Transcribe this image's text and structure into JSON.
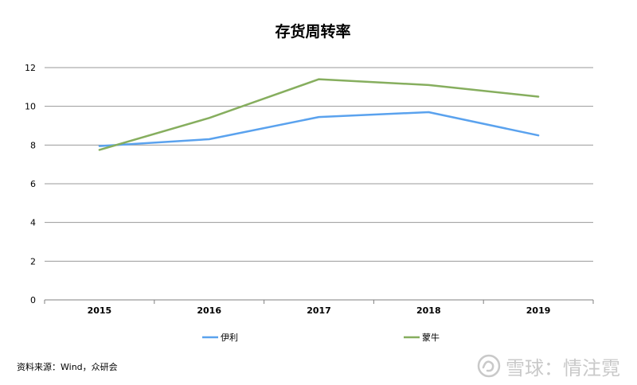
{
  "chart_data": {
    "type": "line",
    "title": "存货周转率",
    "categories": [
      "2015",
      "2016",
      "2017",
      "2018",
      "2019"
    ],
    "ylim": [
      0,
      12
    ],
    "yticks": [
      0,
      2,
      4,
      6,
      8,
      10,
      12
    ],
    "grid": true,
    "legend_position": "bottom",
    "series": [
      {
        "name": "伊利",
        "color": "#5aa2ee",
        "values": [
          7.95,
          8.3,
          9.45,
          9.7,
          8.5
        ]
      },
      {
        "name": "蒙牛",
        "color": "#86ae5e",
        "values": [
          7.75,
          9.4,
          11.4,
          11.1,
          10.5
        ]
      }
    ]
  },
  "source_note": "资料来源：Wind，众研会",
  "watermark": {
    "text": "雪球：情注霓",
    "icon": "snowball-logo-icon"
  }
}
